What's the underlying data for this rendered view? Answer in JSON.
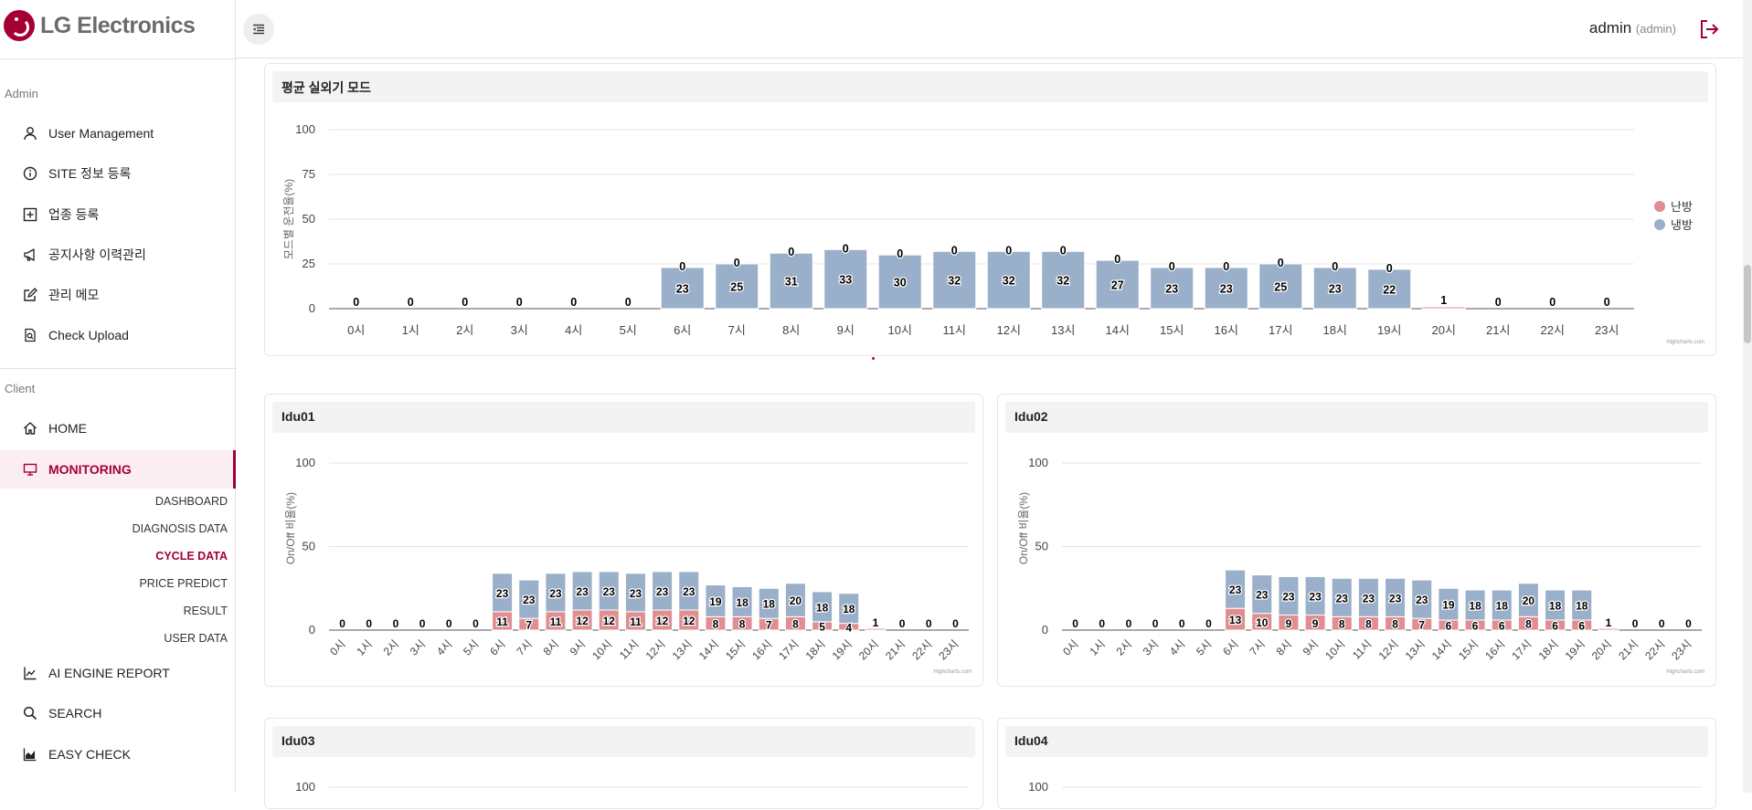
{
  "brand": {
    "name": "LG Electronics",
    "color": "#a50034"
  },
  "header": {
    "user": "admin",
    "role": "(admin)",
    "menu_icon": "menu-collapse-icon",
    "logout_icon": "logout-icon"
  },
  "sidebar": {
    "admin_label": "Admin",
    "admin_items": [
      {
        "label": "User Management",
        "icon": "user-icon"
      },
      {
        "label": "SITE 정보 등록",
        "icon": "info-icon"
      },
      {
        "label": "업종 등록",
        "icon": "plus-square-icon"
      },
      {
        "label": "공지사항 이력관리",
        "icon": "megaphone-icon"
      },
      {
        "label": "관리 메모",
        "icon": "edit-icon"
      },
      {
        "label": "Check Upload",
        "icon": "file-search-icon"
      }
    ],
    "client_label": "Client",
    "client_items": [
      {
        "label": "HOME",
        "icon": "home-icon"
      },
      {
        "label": "MONITORING",
        "icon": "monitor-icon"
      }
    ],
    "sub_items": [
      {
        "label": "DASHBOARD"
      },
      {
        "label": "DIAGNOSIS DATA"
      },
      {
        "label": "CYCLE DATA"
      },
      {
        "label": "PRICE PREDICT"
      },
      {
        "label": "RESULT"
      },
      {
        "label": "USER DATA"
      }
    ],
    "bottom_items": [
      {
        "label": "AI ENGINE REPORT",
        "icon": "report-chart-icon"
      },
      {
        "label": "SEARCH",
        "icon": "search-icon"
      },
      {
        "label": "EASY CHECK",
        "icon": "area-chart-icon"
      }
    ]
  },
  "panels": {
    "main": {
      "title": "평균 실외기 모드"
    },
    "idu01": {
      "title": "Idu01"
    },
    "idu02": {
      "title": "Idu02"
    },
    "idu03": {
      "title": "Idu03"
    },
    "idu04": {
      "title": "Idu04"
    }
  },
  "chart_data": [
    {
      "type": "bar",
      "stacked": true,
      "title": "평균 실외기 모드",
      "ylabel": "모드별 운전율(%)",
      "ylim": [
        0,
        100
      ],
      "yticks": [
        0,
        25,
        50,
        75,
        100
      ],
      "legend": "right",
      "credit": "Highcharts.com",
      "categories": [
        "0시",
        "1시",
        "2시",
        "3시",
        "4시",
        "5시",
        "6시",
        "7시",
        "8시",
        "9시",
        "10시",
        "11시",
        "12시",
        "13시",
        "14시",
        "15시",
        "16시",
        "17시",
        "18시",
        "19시",
        "20시",
        "21시",
        "22시",
        "23시"
      ],
      "series": [
        {
          "name": "난방",
          "color": "#e08e91",
          "values": [
            0,
            0,
            0,
            0,
            0,
            0,
            0,
            0,
            0,
            0,
            0,
            0,
            0,
            0,
            0,
            0,
            0,
            0,
            0,
            0,
            1,
            0,
            0,
            0
          ]
        },
        {
          "name": "냉방",
          "color": "#9aafc9",
          "values": [
            0,
            0,
            0,
            0,
            0,
            0,
            23,
            25,
            31,
            33,
            30,
            32,
            32,
            32,
            27,
            23,
            23,
            25,
            23,
            22,
            0,
            0,
            0,
            0
          ]
        }
      ]
    },
    {
      "type": "bar",
      "stacked": true,
      "title": "Idu01",
      "ylabel": "On/Off 비율(%)",
      "ylim": [
        0,
        100
      ],
      "yticks": [
        0,
        50,
        100
      ],
      "credit": "Highcharts.com",
      "categories": [
        "0시",
        "1시",
        "2시",
        "3시",
        "4시",
        "5시",
        "6시",
        "7시",
        "8시",
        "9시",
        "10시",
        "11시",
        "12시",
        "13시",
        "14시",
        "15시",
        "16시",
        "17시",
        "18시",
        "19시",
        "20시",
        "21시",
        "22시",
        "23시"
      ],
      "series": [
        {
          "name": "",
          "color": "#e08e91",
          "values": [
            0,
            0,
            0,
            0,
            0,
            0,
            11,
            7,
            11,
            12,
            12,
            11,
            12,
            12,
            8,
            8,
            7,
            8,
            5,
            4,
            1,
            0,
            0,
            0
          ]
        },
        {
          "name": "",
          "color": "#9aafc9",
          "values": [
            0,
            0,
            0,
            0,
            0,
            0,
            23,
            23,
            23,
            23,
            23,
            23,
            23,
            23,
            19,
            18,
            18,
            20,
            18,
            18,
            0,
            0,
            0,
            0
          ]
        }
      ]
    },
    {
      "type": "bar",
      "stacked": true,
      "title": "Idu02",
      "ylabel": "On/Off 비율(%)",
      "ylim": [
        0,
        100
      ],
      "yticks": [
        0,
        50,
        100
      ],
      "credit": "Highcharts.com",
      "categories": [
        "0시",
        "1시",
        "2시",
        "3시",
        "4시",
        "5시",
        "6시",
        "7시",
        "8시",
        "9시",
        "10시",
        "11시",
        "12시",
        "13시",
        "14시",
        "15시",
        "16시",
        "17시",
        "18시",
        "19시",
        "20시",
        "21시",
        "22시",
        "23시"
      ],
      "series": [
        {
          "name": "",
          "color": "#e08e91",
          "values": [
            0,
            0,
            0,
            0,
            0,
            0,
            13,
            10,
            9,
            9,
            8,
            8,
            8,
            7,
            6,
            6,
            6,
            8,
            6,
            6,
            1,
            0,
            0,
            0
          ]
        },
        {
          "name": "",
          "color": "#9aafc9",
          "values": [
            0,
            0,
            0,
            0,
            0,
            0,
            23,
            23,
            23,
            23,
            23,
            23,
            23,
            23,
            19,
            18,
            18,
            20,
            18,
            18,
            0,
            0,
            0,
            0
          ]
        }
      ]
    },
    {
      "type": "bar",
      "title": "Idu03",
      "ylim": [
        0,
        100
      ],
      "yticks": [
        100
      ]
    },
    {
      "type": "bar",
      "title": "Idu04",
      "ylim": [
        0,
        100
      ],
      "yticks": [
        100
      ]
    }
  ]
}
